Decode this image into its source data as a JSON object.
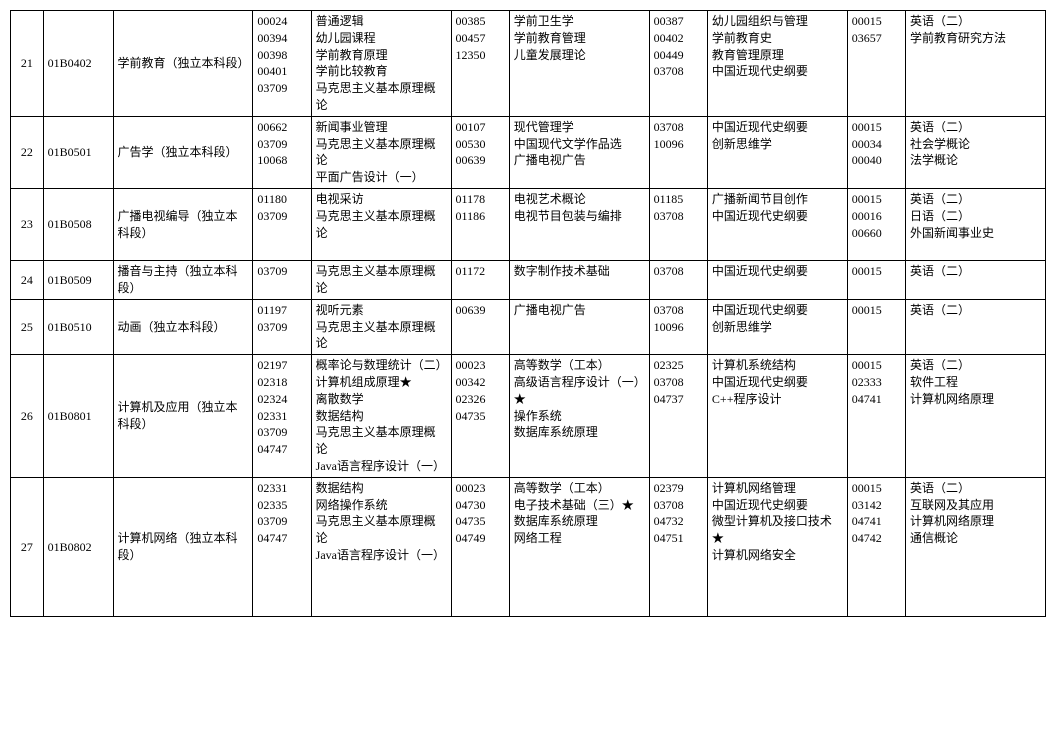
{
  "rows": [
    {
      "idx": "21",
      "code": "01B0402",
      "major": "学前教育（独立本科段）",
      "g1": [
        [
          "00024",
          "普通逻辑"
        ],
        [
          "00394",
          "幼儿园课程"
        ],
        [
          "00398",
          "学前教育原理"
        ],
        [
          "00401",
          "学前比较教育"
        ],
        [
          "03709",
          "马克思主义基本原理概论"
        ]
      ],
      "g2": [
        [
          "00385",
          "学前卫生学"
        ],
        [
          "00457",
          "学前教育管理"
        ],
        [
          "12350",
          "儿童发展理论"
        ]
      ],
      "g3": [
        [
          "00387",
          "幼儿园组织与管理"
        ],
        [
          "00402",
          "学前教育史"
        ],
        [
          "00449",
          "教育管理原理"
        ],
        [
          "03708",
          "中国近现代史纲要"
        ]
      ],
      "g4": [
        [
          "00015",
          "英语（二）"
        ],
        [
          "03657",
          "学前教育研究方法"
        ]
      ]
    },
    {
      "idx": "22",
      "code": "01B0501",
      "major": "广告学（独立本科段）",
      "g1": [
        [
          "00662",
          "新闻事业管理"
        ],
        [
          "03709",
          "马克思主义基本原理概论"
        ],
        [
          "10068",
          "平面广告设计（一）"
        ]
      ],
      "g2": [
        [
          "00107",
          "现代管理学"
        ],
        [
          "00530",
          "中国现代文学作品选"
        ],
        [
          "00639",
          "广播电视广告"
        ]
      ],
      "g3": [
        [
          "03708",
          "中国近现代史纲要"
        ],
        [
          "10096",
          "创新思维学"
        ]
      ],
      "g4": [
        [
          "00015",
          "英语（二）"
        ],
        [
          "00034",
          "社会学概论"
        ],
        [
          "00040",
          "法学概论"
        ]
      ]
    },
    {
      "idx": "23",
      "code": "01B0508",
      "major": "广播电视编导（独立本科段）",
      "g1": [
        [
          "01180",
          "电视采访"
        ],
        [
          "03709",
          "马克思主义基本原理概论"
        ]
      ],
      "g2": [
        [
          "01178",
          "电视艺术概论"
        ],
        [
          "01186",
          "电视节目包装与编排"
        ]
      ],
      "g3": [
        [
          "01185",
          "广播新闻节目创作"
        ],
        [
          "03708",
          "中国近现代史纲要"
        ]
      ],
      "g4": [
        [
          "00015",
          "英语（二）"
        ],
        [
          "00016",
          "日语（二）"
        ],
        [
          "00660",
          "外国新闻事业史"
        ]
      ]
    },
    {
      "idx": "24",
      "code": "01B0509",
      "major": "播音与主持（独立本科段）",
      "g1": [
        [
          "03709",
          "马克思主义基本原理概论"
        ]
      ],
      "g2": [
        [
          "01172",
          "数字制作技术基础"
        ]
      ],
      "g3": [
        [
          "03708",
          "中国近现代史纲要"
        ]
      ],
      "g4": [
        [
          "00015",
          "英语（二）"
        ]
      ]
    },
    {
      "idx": "25",
      "code": "01B0510",
      "major": "动画（独立本科段）",
      "g1": [
        [
          "01197",
          "视听元素"
        ],
        [
          "03709",
          "马克思主义基本原理概论"
        ]
      ],
      "g2": [
        [
          "00639",
          "广播电视广告"
        ]
      ],
      "g3": [
        [
          "03708",
          "中国近现代史纲要"
        ],
        [
          "10096",
          "创新思维学"
        ]
      ],
      "g4": [
        [
          "00015",
          "英语（二）"
        ]
      ]
    },
    {
      "idx": "26",
      "code": "01B0801",
      "major": "计算机及应用（独立本科段）",
      "g1": [
        [
          "02197",
          "概率论与数理统计（二）"
        ],
        [
          "02318",
          "计算机组成原理★"
        ],
        [
          "02324",
          "离散数学"
        ],
        [
          "02331",
          "数据结构"
        ],
        [
          "03709",
          "马克思主义基本原理概论"
        ],
        [
          "04747",
          "Java语言程序设计（一）"
        ]
      ],
      "g2": [
        [
          "00023",
          "高等数学（工本）"
        ],
        [
          "00342",
          "高级语言程序设计（一）★"
        ],
        [
          "02326",
          "操作系统"
        ],
        [
          "04735",
          "数据库系统原理"
        ]
      ],
      "g3": [
        [
          "02325",
          "计算机系统结构"
        ],
        [
          "03708",
          "中国近现代史纲要"
        ],
        [
          "04737",
          "C++程序设计"
        ]
      ],
      "g4": [
        [
          "00015",
          "英语（二）"
        ],
        [
          "02333",
          "软件工程"
        ],
        [
          "04741",
          "计算机网络原理"
        ]
      ]
    },
    {
      "idx": "27",
      "code": "01B0802",
      "major": "计算机网络（独立本科段）",
      "g1": [
        [
          "02331",
          "数据结构"
        ],
        [
          "02335",
          "网络操作系统"
        ],
        [
          "03709",
          "马克思主义基本原理概论"
        ],
        [
          "04747",
          "Java语言程序设计（一）"
        ]
      ],
      "g2": [
        [
          "00023",
          "高等数学（工本）"
        ],
        [
          "04730",
          "电子技术基础（三）★"
        ],
        [
          "04735",
          "数据库系统原理"
        ],
        [
          "04749",
          "网络工程"
        ]
      ],
      "g3": [
        [
          "02379",
          "计算机网络管理"
        ],
        [
          "03708",
          "中国近现代史纲要"
        ],
        [
          "04732",
          "微型计算机及接口技术★"
        ],
        [
          "04751",
          "计算机网络安全"
        ]
      ],
      "g4": [
        [
          "00015",
          "英语（二）"
        ],
        [
          "03142",
          "互联网及其应用"
        ],
        [
          "04741",
          "计算机网络原理"
        ],
        [
          "04742",
          "通信概论"
        ]
      ],
      "extra_bottom": true
    }
  ]
}
